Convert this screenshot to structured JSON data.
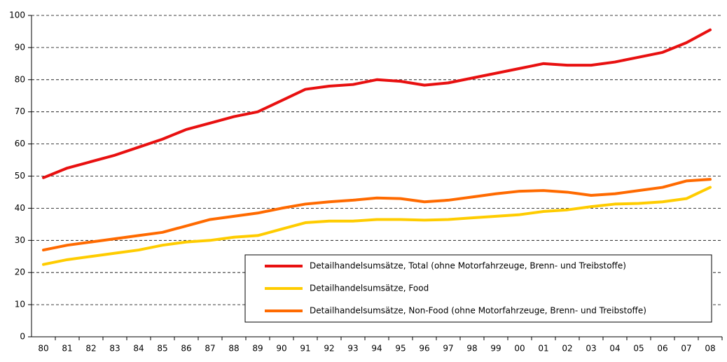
{
  "chart_data": {
    "type": "line",
    "categories": [
      "80",
      "81",
      "82",
      "83",
      "84",
      "85",
      "86",
      "87",
      "88",
      "89",
      "90",
      "91",
      "92",
      "93",
      "94",
      "95",
      "96",
      "97",
      "98",
      "99",
      "00",
      "01",
      "02",
      "03",
      "04",
      "05",
      "06",
      "07",
      "08"
    ],
    "series": [
      {
        "name": "Detailhandelsumsätze, Total (ohne Motorfahrzeuge, Brenn- und Treibstoffe)",
        "color": "#e81010",
        "values": [
          49.5,
          52.5,
          54.5,
          56.5,
          59,
          61.5,
          64.5,
          66.5,
          68.5,
          70,
          73.5,
          77,
          78,
          78.5,
          80,
          79.5,
          78.3,
          79,
          80.5,
          82,
          83.5,
          85,
          84.5,
          84.5,
          85.5,
          87,
          88.5,
          91.5,
          95.5
        ]
      },
      {
        "name": "Detailhandelsumsätze, Food",
        "color": "#ffcc00",
        "values": [
          22.5,
          24,
          25,
          26,
          27,
          28.5,
          29.5,
          30,
          31,
          31.5,
          33.5,
          35.5,
          36,
          36,
          36.5,
          36.5,
          36.3,
          36.5,
          37,
          37.5,
          38,
          39,
          39.5,
          40.5,
          41.3,
          41.5,
          42,
          43,
          46.5
        ]
      },
      {
        "name": "Detailhandelsumsätze, Non-Food (ohne Motorfahrzeuge, Brenn- und Treibstoffe)",
        "color": "#ff6a00",
        "values": [
          27,
          28.5,
          29.5,
          30.5,
          31.5,
          32.5,
          34.5,
          36.5,
          37.5,
          38.5,
          40,
          41.3,
          42,
          42.5,
          43.2,
          43,
          42,
          42.5,
          43.5,
          44.5,
          45.3,
          45.5,
          45,
          44,
          44.5,
          45.5,
          46.5,
          48.5,
          49
        ]
      }
    ],
    "ylim": [
      0,
      100
    ],
    "yticks": [
      0,
      10,
      20,
      30,
      40,
      50,
      60,
      70,
      80,
      90,
      100
    ],
    "grid": true,
    "legend": "bottom-right"
  }
}
